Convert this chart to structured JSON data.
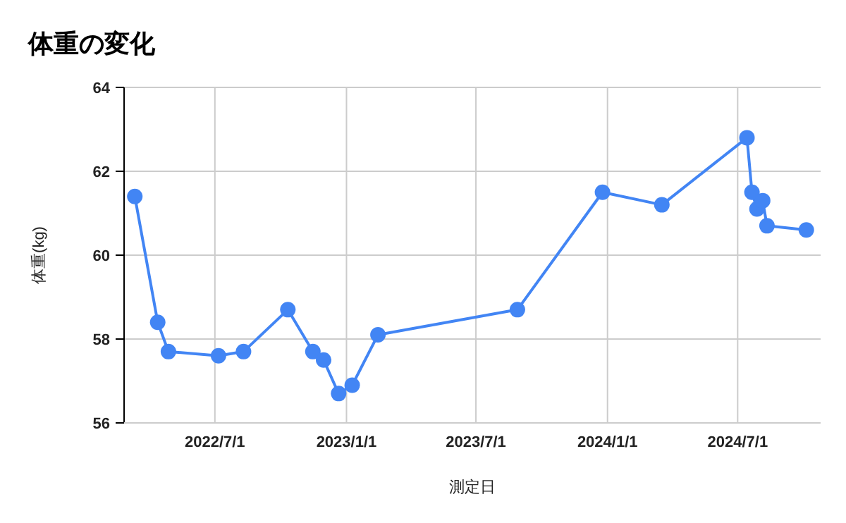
{
  "chart_data": {
    "type": "line",
    "title": "体重の変化",
    "xlabel": "測定日",
    "ylabel": "体重(kg)",
    "x": [
      "2022-03-11",
      "2022-04-12",
      "2022-04-27",
      "2022-07-06",
      "2022-08-10",
      "2022-10-11",
      "2022-11-15",
      "2022-11-30",
      "2022-12-21",
      "2023-01-09",
      "2023-02-14",
      "2023-08-28",
      "2023-12-25",
      "2024-03-17",
      "2024-07-14",
      "2024-07-21",
      "2024-07-28",
      "2024-08-05",
      "2024-08-11",
      "2024-10-05"
    ],
    "series": [
      {
        "color": "#4285f4",
        "values": [
          61.4,
          58.4,
          57.7,
          57.6,
          57.7,
          58.7,
          57.7,
          57.5,
          56.7,
          56.9,
          58.1,
          58.7,
          61.5,
          61.2,
          62.8,
          61.5,
          61.1,
          61.3,
          60.7,
          60.6
        ]
      }
    ],
    "xlim": [
      "2022-02-24",
      "2024-10-25"
    ],
    "xticks": [
      {
        "value": "2022-07-01",
        "label": "2022/7/1"
      },
      {
        "value": "2023-01-01",
        "label": "2023/1/1"
      },
      {
        "value": "2023-07-01",
        "label": "2023/7/1"
      },
      {
        "value": "2024-01-01",
        "label": "2024/1/1"
      },
      {
        "value": "2024-07-01",
        "label": "2024/7/1"
      }
    ],
    "ylim": [
      56,
      64
    ],
    "yticks": [
      56,
      58,
      60,
      62,
      64
    ],
    "grid": true,
    "marker": "circle",
    "line_style": "solid"
  }
}
